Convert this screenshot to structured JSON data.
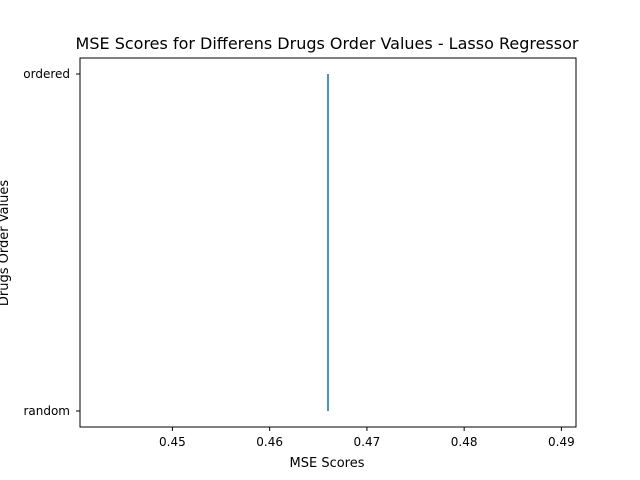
{
  "chart_data": {
    "type": "line",
    "title": "MSE Scores for Differens Drugs Order Values - Lasso Regressor",
    "xlabel": "MSE Scores",
    "ylabel": "Drugs Order Values",
    "xlim": [
      0.4405,
      0.4915
    ],
    "x_ticks": [
      0.45,
      0.46,
      0.47,
      0.48,
      0.49
    ],
    "y_categories": [
      "random",
      "ordered"
    ],
    "grid": false,
    "series": [
      {
        "color": "#1f77b4",
        "points": [
          {
            "x": 0.466,
            "y": "random"
          },
          {
            "x": 0.466,
            "y": "ordered"
          }
        ]
      }
    ]
  }
}
